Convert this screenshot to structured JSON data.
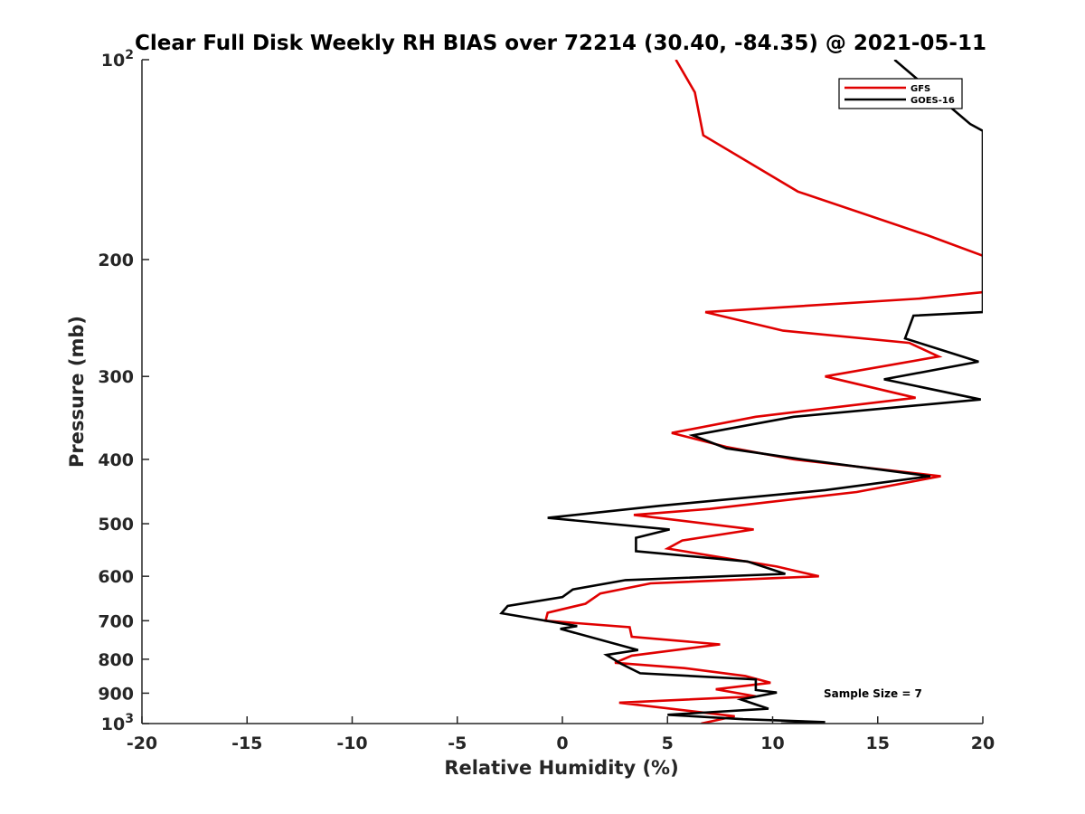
{
  "chart_data": {
    "type": "line",
    "title": "Clear Full Disk Weekly RH BIAS over 72214 (30.40, -84.35) @ 2021-05-11",
    "xlabel": "Relative Humidity (%)",
    "ylabel": "Pressure (mb)",
    "xlim": [
      -20,
      20
    ],
    "ylim": [
      100,
      1000
    ],
    "yscale": "log",
    "y_reversed": true,
    "grid": false,
    "legend_position": "top-right",
    "x_ticks": [
      -20,
      -15,
      -10,
      -5,
      0,
      5,
      10,
      15,
      20
    ],
    "x_tick_labels": [
      "-20",
      "-15",
      "-10",
      "-5",
      "0",
      "5",
      "10",
      "15",
      "20"
    ],
    "y_ticks": [
      {
        "value": 100,
        "base": "10",
        "exp": "2"
      },
      {
        "value": 200,
        "base": "200",
        "exp": ""
      },
      {
        "value": 300,
        "base": "300",
        "exp": ""
      },
      {
        "value": 400,
        "base": "400",
        "exp": ""
      },
      {
        "value": 500,
        "base": "500",
        "exp": ""
      },
      {
        "value": 600,
        "base": "600",
        "exp": ""
      },
      {
        "value": 700,
        "base": "700",
        "exp": ""
      },
      {
        "value": 800,
        "base": "800",
        "exp": ""
      },
      {
        "value": 900,
        "base": "900",
        "exp": ""
      },
      {
        "value": 1000,
        "base": "10",
        "exp": "3"
      }
    ],
    "annotation": "Sample Size = 7",
    "series": [
      {
        "name": "GFS",
        "color": "#e00000",
        "points": [
          [
            5.4,
            100
          ],
          [
            6.3,
            112
          ],
          [
            6.7,
            130
          ],
          [
            11.2,
            158
          ],
          [
            17.4,
            184
          ],
          [
            20.5,
            200
          ],
          [
            20.0,
            224
          ],
          [
            17.0,
            229
          ],
          [
            6.8,
            240
          ],
          [
            10.5,
            256
          ],
          [
            16.5,
            267
          ],
          [
            17.9,
            280
          ],
          [
            12.5,
            300
          ],
          [
            16.8,
            323
          ],
          [
            9.2,
            345
          ],
          [
            5.2,
            365
          ],
          [
            7.8,
            383
          ],
          [
            11.0,
            400
          ],
          [
            18.0,
            424
          ],
          [
            14.0,
            448
          ],
          [
            7.0,
            475
          ],
          [
            3.4,
            485
          ],
          [
            9.1,
            510
          ],
          [
            5.7,
            530
          ],
          [
            5.0,
            545
          ],
          [
            10.2,
            580
          ],
          [
            12.2,
            600
          ],
          [
            4.2,
            615
          ],
          [
            1.8,
            637
          ],
          [
            1.1,
            660
          ],
          [
            -0.7,
            681
          ],
          [
            -0.8,
            700
          ],
          [
            3.2,
            716
          ],
          [
            3.3,
            740
          ],
          [
            7.5,
            760
          ],
          [
            3.3,
            790
          ],
          [
            2.5,
            810
          ],
          [
            5.8,
            825
          ],
          [
            8.7,
            848
          ],
          [
            9.9,
            868
          ],
          [
            7.3,
            888
          ],
          [
            9.2,
            910
          ],
          [
            2.7,
            930
          ],
          [
            8.2,
            975
          ],
          [
            6.6,
            1000
          ]
        ]
      },
      {
        "name": "GOES-16",
        "color": "#000000",
        "points": [
          [
            15.8,
            100
          ],
          [
            19.4,
            125
          ],
          [
            20.0,
            128
          ],
          [
            20.0,
            240
          ],
          [
            16.7,
            243
          ],
          [
            16.3,
            263
          ],
          [
            19.8,
            285
          ],
          [
            15.3,
            303
          ],
          [
            19.9,
            325
          ],
          [
            11.0,
            345
          ],
          [
            6.2,
            368
          ],
          [
            7.8,
            385
          ],
          [
            11.4,
            400
          ],
          [
            17.5,
            424
          ],
          [
            12.5,
            445
          ],
          [
            4.6,
            470
          ],
          [
            -0.7,
            490
          ],
          [
            5.1,
            510
          ],
          [
            3.5,
            525
          ],
          [
            3.5,
            550
          ],
          [
            8.8,
            570
          ],
          [
            10.6,
            595
          ],
          [
            3.0,
            608
          ],
          [
            0.5,
            628
          ],
          [
            0.0,
            645
          ],
          [
            -2.6,
            665
          ],
          [
            -2.9,
            682
          ],
          [
            0.7,
            713
          ],
          [
            -0.1,
            720
          ],
          [
            3.6,
            775
          ],
          [
            2.1,
            788
          ],
          [
            2.8,
            813
          ],
          [
            3.7,
            840
          ],
          [
            9.2,
            858
          ],
          [
            9.2,
            890
          ],
          [
            10.2,
            898
          ],
          [
            8.5,
            920
          ],
          [
            9.8,
            950
          ],
          [
            5.0,
            970
          ],
          [
            8.6,
            985
          ],
          [
            12.5,
            995
          ],
          [
            10.4,
            1000
          ]
        ]
      }
    ]
  }
}
